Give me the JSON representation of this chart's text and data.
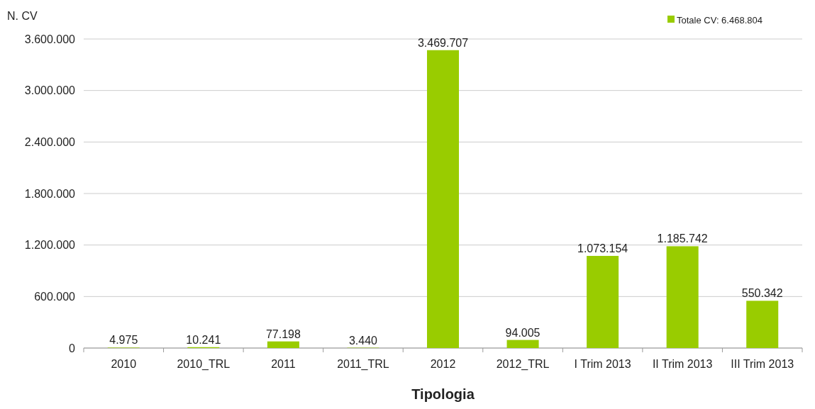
{
  "chart_data": {
    "type": "bar",
    "xlabel": "Tipologia",
    "ylabel": "N. CV",
    "categories": [
      "2010",
      "2010_TRL",
      "2011",
      "2011_TRL",
      "2012",
      "2012_TRL",
      "I Trim 2013",
      "II Trim 2013",
      "III Trim 2013"
    ],
    "series": [
      {
        "name": "Totale CV: 6.468.804",
        "color": "#99cc00",
        "values": [
          4975,
          10241,
          77198,
          3440,
          3469707,
          94005,
          1073154,
          1185742,
          550342
        ],
        "value_labels": [
          "4.975",
          "10.241",
          "77.198",
          "3.440",
          "3.469.707",
          "94.005",
          "1.073.154",
          "1.185.742",
          "550.342"
        ]
      }
    ],
    "ylim": [
      0,
      3600000
    ],
    "yticks": [
      {
        "value": 0,
        "label": "0"
      },
      {
        "value": 600000,
        "label": "600.000"
      },
      {
        "value": 1200000,
        "label": "1.200.000"
      },
      {
        "value": 1800000,
        "label": "1.800.000"
      },
      {
        "value": 2400000,
        "label": "2.400.000"
      },
      {
        "value": 3000000,
        "label": "3.000.000"
      },
      {
        "value": 3600000,
        "label": "3.600.000"
      }
    ],
    "grid": "y",
    "legend": "top right"
  }
}
